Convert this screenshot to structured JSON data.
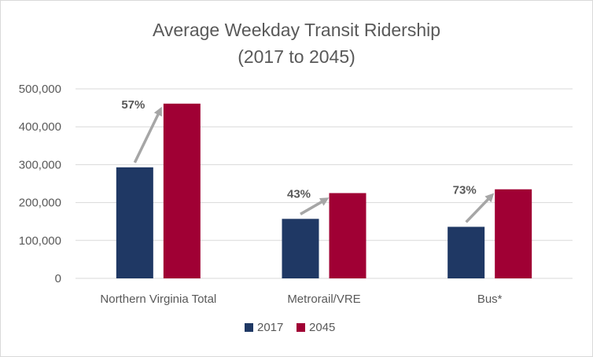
{
  "chart_data": {
    "type": "bar",
    "title": "Average Weekday Transit Ridership",
    "subtitle": "(2017 to 2045)",
    "categories": [
      "Northern Virginia Total",
      "Metrorail/VRE",
      "Bus*"
    ],
    "series": [
      {
        "name": "2017",
        "values": [
          293000,
          157000,
          136000
        ],
        "color": "#1f3864"
      },
      {
        "name": "2045",
        "values": [
          461000,
          225000,
          235000
        ],
        "color": "#a00034"
      }
    ],
    "annotations": [
      "57%",
      "43%",
      "73%"
    ],
    "annotation_arrow_color": "#a6a6a6",
    "ylim": [
      0,
      500000
    ],
    "yticks": [
      0,
      100000,
      200000,
      300000,
      400000,
      500000
    ],
    "ytick_labels": [
      "0",
      "100,000",
      "200,000",
      "300,000",
      "400,000",
      "500,000"
    ],
    "xlabel": "",
    "ylabel": "",
    "grid": true,
    "legend_position": "bottom"
  }
}
